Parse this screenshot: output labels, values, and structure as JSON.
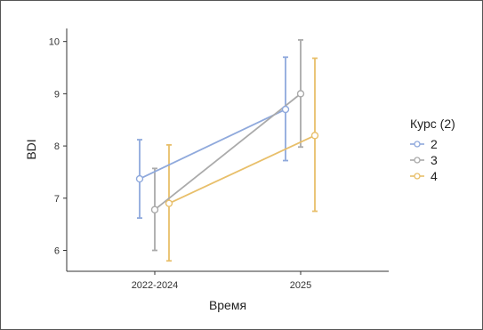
{
  "chart_data": {
    "type": "line",
    "xlabel": "Время",
    "ylabel": "BDI",
    "categories": [
      "2022-2024",
      "2025"
    ],
    "ylim": [
      5.6,
      10.25
    ],
    "yticks": [
      6,
      7,
      8,
      9,
      10
    ],
    "legend": {
      "title": "Курс (2)",
      "position": "right"
    },
    "grid": false,
    "series": [
      {
        "name": "2",
        "color": "#8fa9dc",
        "values": [
          7.37,
          8.7
        ],
        "lower": [
          6.62,
          7.72
        ],
        "upper": [
          8.12,
          9.7
        ]
      },
      {
        "name": "3",
        "color": "#aaaaaa",
        "values": [
          6.78,
          9.0
        ],
        "lower": [
          6.0,
          7.98
        ],
        "upper": [
          7.57,
          10.03
        ]
      },
      {
        "name": "4",
        "color": "#e8bf6a",
        "values": [
          6.9,
          8.2
        ],
        "lower": [
          5.8,
          6.75
        ],
        "upper": [
          8.02,
          9.68
        ]
      }
    ]
  }
}
